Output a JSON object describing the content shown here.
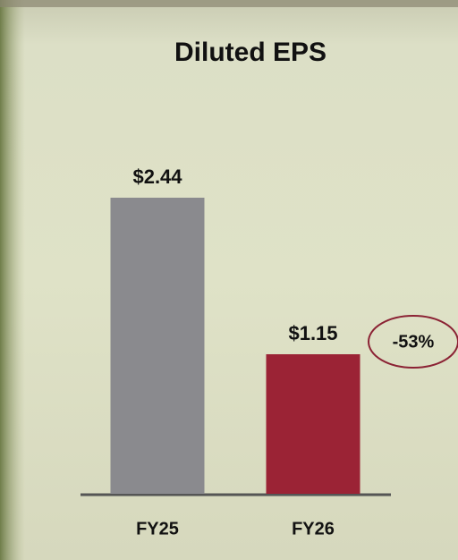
{
  "chart_data": {
    "type": "bar",
    "title": "Diluted EPS",
    "categories": [
      "FY25",
      "FY26"
    ],
    "values": [
      2.44,
      1.15
    ],
    "value_labels": [
      "$2.44",
      "$1.15"
    ],
    "colors": [
      "#8a8a8e",
      "#9b2335"
    ],
    "annotation": "-53%"
  }
}
